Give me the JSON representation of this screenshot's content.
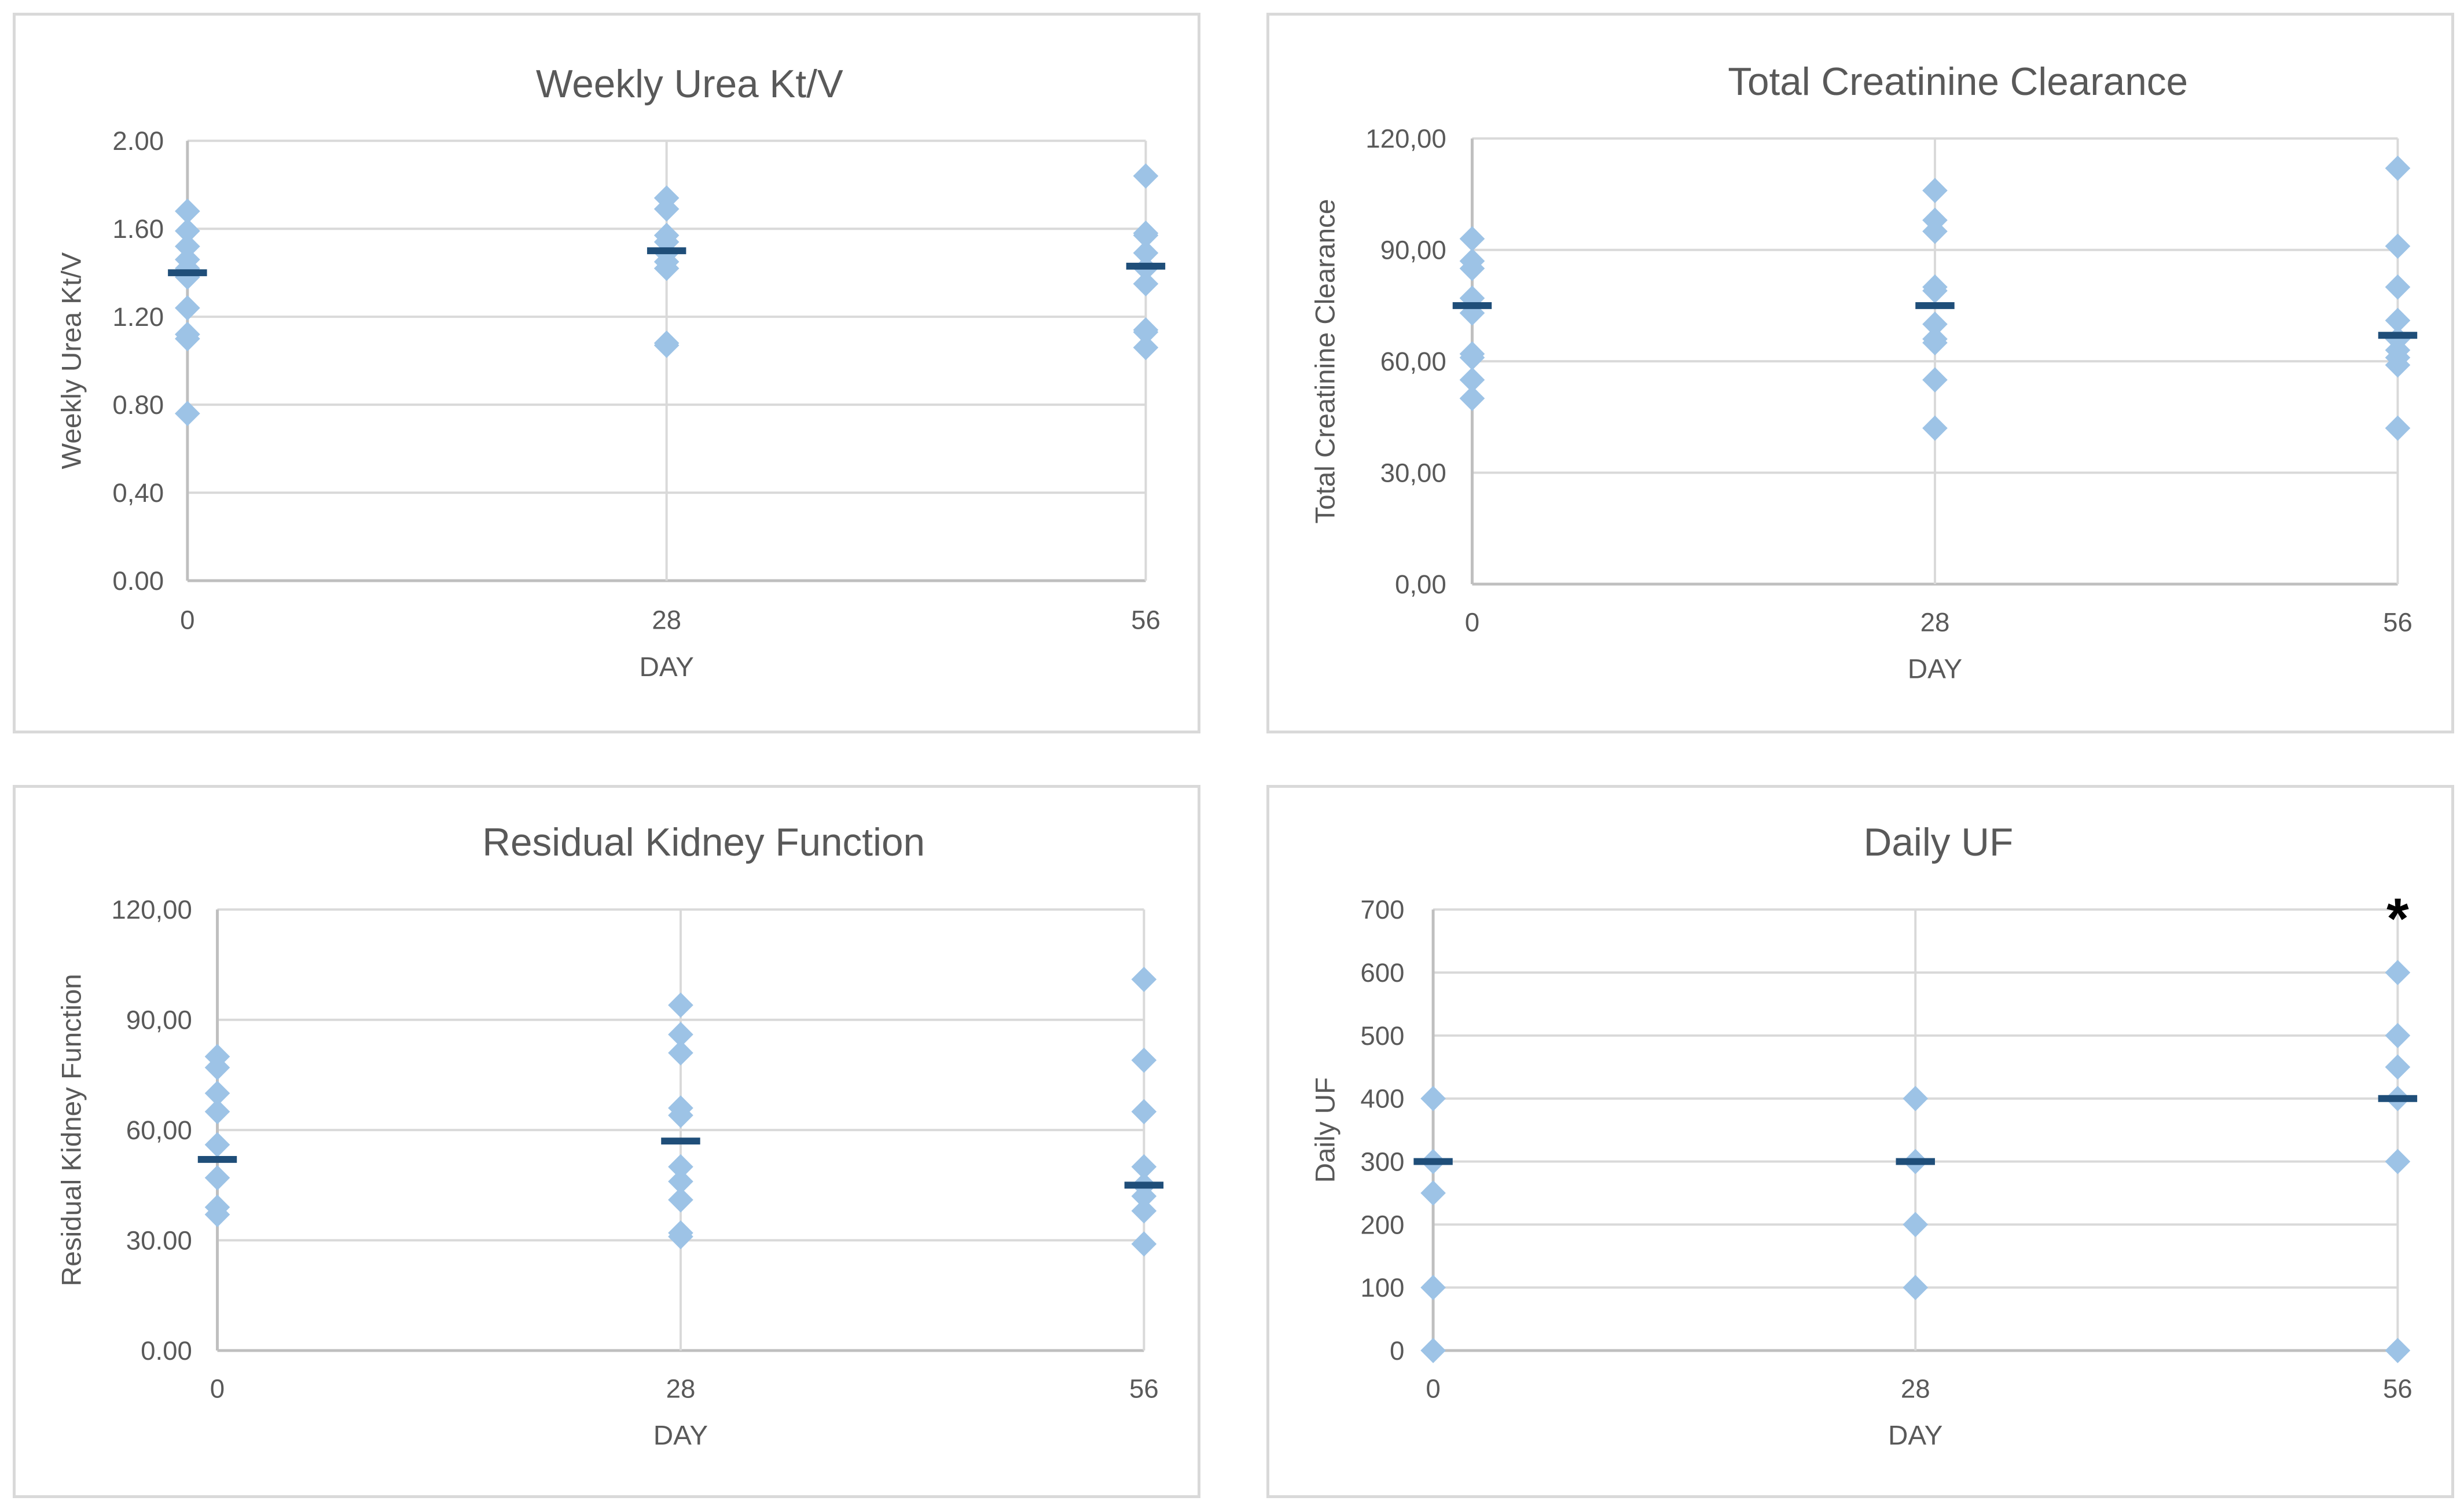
{
  "chart_data": [
    {
      "id": "kt",
      "type": "scatter",
      "title": "Weekly Urea Kt/V",
      "xlabel": "DAY",
      "ylabel": "Weekly Urea Kt/V",
      "categories": [
        "0",
        "28",
        "56"
      ],
      "ylim": [
        0,
        2
      ],
      "yticks": [
        "0.00",
        "0,40",
        "0.80",
        "1.20",
        "1.60",
        "2.00"
      ],
      "ytick_values": [
        0,
        0.4,
        0.8,
        1.2,
        1.6,
        2.0
      ],
      "grid": true,
      "points": [
        [
          1.68,
          1.59,
          1.52,
          1.46,
          1.42,
          1.38,
          1.24,
          1.12,
          1.1,
          0.76
        ],
        [
          1.74,
          1.69,
          1.57,
          1.54,
          1.49,
          1.45,
          1.42,
          1.08,
          1.07
        ],
        [
          1.84,
          1.58,
          1.57,
          1.49,
          1.42,
          1.35,
          1.14,
          1.13,
          1.06
        ]
      ],
      "means": [
        1.4,
        1.5,
        1.43
      ],
      "annotations": []
    },
    {
      "id": "tcc",
      "type": "scatter",
      "title": "Total Creatinine Clearance",
      "xlabel": "DAY",
      "ylabel": "Total Creatinine Clearance",
      "categories": [
        "0",
        "28",
        "56"
      ],
      "ylim": [
        0,
        120
      ],
      "yticks": [
        "0,00",
        "30,00",
        "60,00",
        "90,00",
        "120,00"
      ],
      "ytick_values": [
        0,
        30,
        60,
        90,
        120
      ],
      "grid": true,
      "points": [
        [
          93,
          87,
          85,
          77,
          73,
          62,
          61,
          55,
          50
        ],
        [
          106,
          98,
          95,
          80,
          79,
          70,
          66,
          65,
          55,
          42
        ],
        [
          112,
          91,
          80,
          71,
          66,
          63,
          61,
          59,
          42
        ]
      ],
      "means": [
        75,
        75,
        67
      ],
      "annotations": []
    },
    {
      "id": "rkf",
      "type": "scatter",
      "title": "Residual Kidney Function",
      "xlabel": "DAY",
      "ylabel": "Residual Kidney Function",
      "categories": [
        "0",
        "28",
        "56"
      ],
      "ylim": [
        0,
        120
      ],
      "yticks": [
        "0.00",
        "30.00",
        "60,00",
        "90,00",
        "120,00"
      ],
      "ytick_values": [
        0,
        30,
        60,
        90,
        120
      ],
      "grid": true,
      "points": [
        [
          80,
          77,
          70,
          65,
          56,
          47,
          39,
          37
        ],
        [
          94,
          86,
          81,
          66,
          64,
          50,
          46,
          41,
          32,
          31
        ],
        [
          101,
          79,
          65,
          50,
          45,
          42,
          38,
          29
        ]
      ],
      "means": [
        52,
        57,
        45
      ],
      "annotations": []
    },
    {
      "id": "uf",
      "type": "scatter",
      "title": "Daily UF",
      "xlabel": "DAY",
      "ylabel": "Daily UF",
      "categories": [
        "0",
        "28",
        "56"
      ],
      "ylim": [
        0,
        700
      ],
      "yticks": [
        "0",
        "100",
        "200",
        "300",
        "400",
        "500",
        "600",
        "700"
      ],
      "ytick_values": [
        0,
        100,
        200,
        300,
        400,
        500,
        600,
        700
      ],
      "grid": true,
      "points": [
        [
          400,
          300,
          250,
          100,
          0
        ],
        [
          400,
          300,
          200,
          100
        ],
        [
          600,
          500,
          450,
          400,
          300,
          0
        ]
      ],
      "means": [
        300,
        300,
        400
      ],
      "annotations": [
        {
          "text": "*",
          "category_index": 2,
          "value": 700
        }
      ]
    }
  ]
}
